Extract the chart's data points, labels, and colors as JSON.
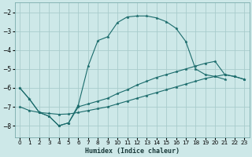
{
  "xlabel": "Humidex (Indice chaleur)",
  "bg_color": "#cde8e8",
  "grid_color": "#a8cccc",
  "line_color": "#1a6b6b",
  "xlim": [
    -0.5,
    23.5
  ],
  "ylim": [
    -8.6,
    -1.5
  ],
  "yticks": [
    -8,
    -7,
    -6,
    -5,
    -4,
    -3,
    -2
  ],
  "xticks": [
    0,
    1,
    2,
    3,
    4,
    5,
    6,
    7,
    8,
    9,
    10,
    11,
    12,
    13,
    14,
    15,
    16,
    17,
    18,
    19,
    20,
    21,
    22,
    23
  ],
  "series": [
    {
      "x": [
        0,
        1,
        2,
        3,
        4,
        5,
        6,
        7,
        8,
        9,
        10,
        11,
        12,
        13,
        14,
        15,
        16,
        17,
        18,
        19,
        20,
        21,
        22,
        23
      ],
      "y": [
        -6.0,
        -6.6,
        -7.3,
        -7.5,
        -8.0,
        -7.85,
        -6.9,
        -4.85,
        -3.5,
        -3.3,
        -2.55,
        -2.25,
        -2.2,
        -2.2,
        -2.3,
        -2.5,
        -2.85,
        -3.55,
        -5.0,
        -5.3,
        -5.4,
        -5.55,
        null,
        null
      ]
    },
    {
      "x": [
        0,
        1,
        2,
        3,
        4,
        5,
        6,
        7,
        8,
        9,
        10,
        11,
        12,
        13,
        14,
        15,
        16,
        17,
        18,
        19,
        20,
        21,
        22,
        23
      ],
      "y": [
        -6.0,
        -6.6,
        -7.3,
        -7.5,
        -8.0,
        -7.85,
        -7.0,
        -6.85,
        -6.7,
        -6.55,
        -6.3,
        -6.1,
        -5.85,
        -5.65,
        -5.45,
        -5.3,
        -5.15,
        -5.0,
        -4.85,
        -4.7,
        -4.6,
        -5.3,
        -5.4,
        -5.55
      ]
    },
    {
      "x": [
        0,
        1,
        2,
        3,
        4,
        5,
        6,
        7,
        8,
        9,
        10,
        11,
        12,
        13,
        14,
        15,
        16,
        17,
        18,
        19,
        20,
        21,
        22,
        23
      ],
      "y": [
        -7.0,
        -7.2,
        -7.3,
        -7.35,
        -7.4,
        -7.38,
        -7.3,
        -7.2,
        -7.1,
        -7.0,
        -6.85,
        -6.7,
        -6.55,
        -6.4,
        -6.25,
        -6.1,
        -5.95,
        -5.8,
        -5.65,
        -5.5,
        -5.4,
        -5.3,
        -5.4,
        -5.55
      ]
    }
  ]
}
